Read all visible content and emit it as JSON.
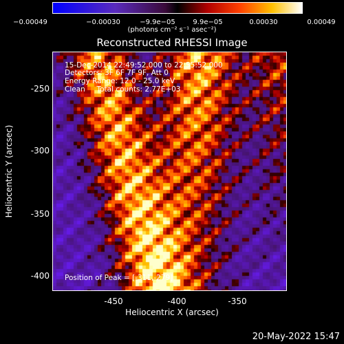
{
  "title": "Reconstructed RHESSI Image",
  "colorbar": {
    "ticks": [
      "−0.00049",
      "−0.00030",
      "−9.9e−05",
      "9.9e−05",
      "0.00030",
      "0.00049"
    ],
    "units": "(photons cm⁻² s⁻¹ asec⁻²)"
  },
  "info": {
    "time": "15-Dec-2014 22:49:52.000 to 22:55:52.000",
    "detectors": "Detectors: 3F 6F 7F 9F, Att 0",
    "energy": "Energy Range: 12.0 - 25.0 keV",
    "method": "Clean     Total counts: 2.77E+03"
  },
  "peak": "Position of Peak = [-311,-279]",
  "axes": {
    "xlabel": "Heliocentric X (arcsec)",
    "ylabel": "Heliocentric Y (arcsec)",
    "xticks": [
      "-450",
      "-400",
      "-350"
    ],
    "yticks": [
      "-250",
      "-300",
      "-350",
      "-400"
    ]
  },
  "date": "20-May-2022 15:47",
  "colors": {
    "background": "#000000",
    "text": "#ffffff"
  }
}
